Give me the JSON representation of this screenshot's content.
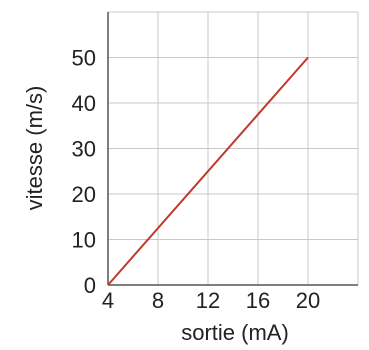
{
  "chart_data": {
    "type": "line",
    "xlabel": "sortie (mA)",
    "ylabel": "vitesse (m/s)",
    "xlim": [
      4,
      24
    ],
    "ylim": [
      0,
      60
    ],
    "x_ticks": [
      4,
      8,
      12,
      16,
      20
    ],
    "y_ticks": [
      0,
      10,
      20,
      30,
      40,
      50
    ],
    "grid": true,
    "series": [
      {
        "x": [
          4,
          20
        ],
        "y": [
          0,
          50
        ],
        "color": "#c0392b"
      }
    ]
  }
}
